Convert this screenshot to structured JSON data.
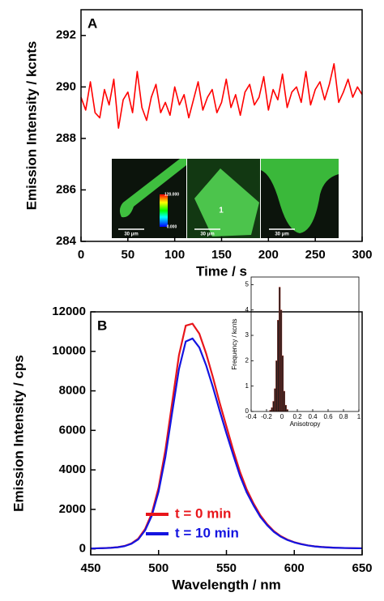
{
  "chart_data": [
    {
      "type": "line",
      "panel_label": "A",
      "x_label": "Time / s",
      "y_label": "Emission Intensity / kcnts",
      "color": "#ff0000",
      "x": [
        0,
        5,
        10,
        15,
        20,
        25,
        30,
        35,
        40,
        45,
        50,
        55,
        60,
        65,
        70,
        75,
        80,
        85,
        90,
        95,
        100,
        105,
        110,
        115,
        120,
        125,
        130,
        135,
        140,
        145,
        150,
        155,
        160,
        165,
        170,
        175,
        180,
        185,
        190,
        195,
        200,
        205,
        210,
        215,
        220,
        225,
        230,
        235,
        240,
        245,
        250,
        255,
        260,
        265,
        270,
        275,
        280,
        285,
        290,
        295,
        300
      ],
      "values": [
        289.6,
        289.1,
        290.2,
        289.0,
        288.8,
        289.9,
        289.3,
        290.3,
        288.4,
        289.5,
        289.8,
        289.0,
        290.6,
        289.2,
        288.7,
        289.6,
        290.1,
        289.0,
        289.4,
        288.9,
        290.0,
        289.3,
        289.7,
        288.8,
        289.5,
        290.2,
        289.1,
        289.6,
        289.9,
        289.0,
        289.4,
        290.3,
        289.2,
        289.7,
        288.9,
        289.8,
        290.1,
        289.3,
        289.6,
        290.4,
        289.1,
        289.9,
        289.5,
        290.5,
        289.2,
        289.8,
        290.0,
        289.4,
        290.6,
        289.3,
        289.9,
        290.2,
        289.5,
        290.1,
        290.9,
        289.4,
        289.8,
        290.3,
        289.6,
        290.0,
        289.7
      ],
      "xlim": [
        0,
        300
      ],
      "xticks": [
        0,
        50,
        100,
        150,
        200,
        250,
        300
      ],
      "ylim": [
        284,
        293
      ],
      "yticks": [
        284,
        286,
        288,
        290,
        292
      ],
      "image_labels": [
        "30 μm",
        "120.000",
        "0.000",
        "1",
        "30 μm",
        "30 μm"
      ]
    },
    {
      "type": "line",
      "panel_label": "B",
      "x_label": "Wavelength / nm",
      "y_label": "Emission Intensity / cps",
      "legend": "lower left",
      "x": [
        450,
        455,
        460,
        465,
        470,
        475,
        480,
        485,
        490,
        495,
        500,
        505,
        510,
        515,
        520,
        525,
        530,
        535,
        540,
        545,
        550,
        555,
        560,
        565,
        570,
        575,
        580,
        585,
        590,
        595,
        600,
        605,
        610,
        615,
        620,
        625,
        630,
        635,
        640,
        645,
        650
      ],
      "series": [
        {
          "name": "t = 0 min",
          "color": "#e8161b",
          "values": [
            20,
            30,
            40,
            60,
            90,
            150,
            280,
            520,
            1000,
            1800,
            3100,
            5000,
            7400,
            9800,
            11300,
            11400,
            10900,
            9900,
            8700,
            7400,
            6200,
            5000,
            3900,
            3000,
            2300,
            1700,
            1250,
            900,
            650,
            470,
            340,
            250,
            180,
            130,
            100,
            80,
            60,
            50,
            40,
            35,
            30
          ]
        },
        {
          "name": "t = 10 min",
          "color": "#1414e0",
          "values": [
            20,
            30,
            40,
            55,
            85,
            140,
            260,
            480,
            930,
            1680,
            2900,
            4650,
            6900,
            9100,
            10500,
            10650,
            10200,
            9300,
            8200,
            7000,
            5850,
            4750,
            3700,
            2850,
            2200,
            1620,
            1200,
            860,
            620,
            450,
            330,
            240,
            175,
            125,
            95,
            75,
            58,
            48,
            40,
            34,
            30
          ]
        }
      ],
      "xlim": [
        450,
        650
      ],
      "xticks": [
        450,
        500,
        550,
        600,
        650
      ],
      "ylim": [
        -300,
        12000
      ],
      "yticks": [
        0,
        2000,
        4000,
        6000,
        8000,
        10000,
        12000
      ]
    },
    {
      "type": "histogram",
      "x_label": "Anisotropy",
      "y_label": "Frequency / kcnts",
      "color": "#1a1a1a",
      "bins": [
        -0.16,
        -0.14,
        -0.12,
        -0.1,
        -0.08,
        -0.06,
        -0.04,
        -0.02,
        0,
        0.02,
        0.04,
        0.06,
        0.08
      ],
      "values": [
        0.05,
        0.15,
        0.4,
        0.9,
        2.0,
        3.6,
        4.9,
        4.0,
        2.2,
        0.8,
        0.25,
        0.08
      ],
      "xlim": [
        -0.4,
        1
      ],
      "xticks": [
        -0.4,
        -0.2,
        0,
        0.2,
        0.4,
        0.6,
        0.8,
        1
      ],
      "ylim": [
        0,
        5.3
      ],
      "yticks": [
        0,
        1,
        2,
        3,
        4,
        5
      ]
    }
  ]
}
